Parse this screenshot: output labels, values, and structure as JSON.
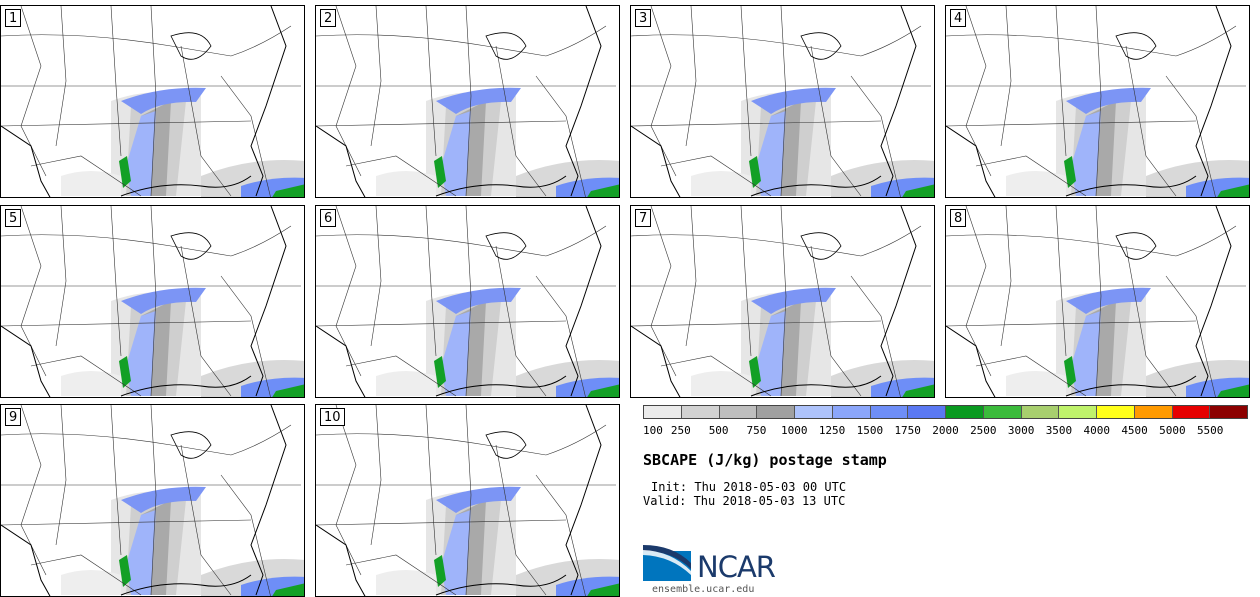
{
  "panels": [
    {
      "label": "1"
    },
    {
      "label": "2"
    },
    {
      "label": "3"
    },
    {
      "label": "4"
    },
    {
      "label": "5"
    },
    {
      "label": "6"
    },
    {
      "label": "7"
    },
    {
      "label": "8"
    },
    {
      "label": "9"
    },
    {
      "label": "10"
    }
  ],
  "legend": {
    "colors": [
      "#ebebeb",
      "#d2d2d2",
      "#bebebe",
      "#a0a0a0",
      "#aec3fb",
      "#8ba6fa",
      "#6e8ef7",
      "#5a78f2",
      "#0a9a20",
      "#3bbb3b",
      "#a8cf6e",
      "#bff26b",
      "#ffff1a",
      "#ff9a00",
      "#e60000",
      "#8c0000"
    ],
    "labels": [
      "100",
      "250",
      "500",
      "750",
      "1000",
      "1250",
      "1500",
      "1750",
      "2000",
      "2500",
      "3000",
      "3500",
      "4000",
      "4500",
      "5000",
      "5500"
    ]
  },
  "title": "SBCAPE (J/kg) postage stamp",
  "init": "Init: Thu 2018-05-03 00 UTC",
  "valid": "Valid: Thu 2018-05-03 13 UTC",
  "logo_text": "NCAR",
  "website": "ensemble.ucar.edu"
}
